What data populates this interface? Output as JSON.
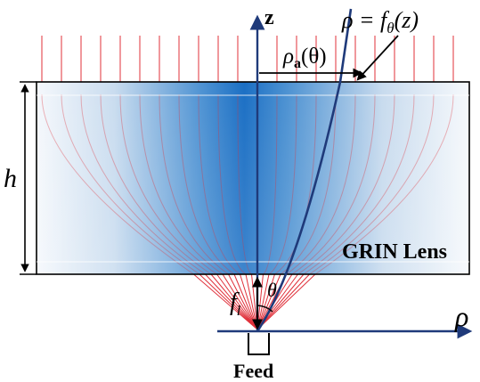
{
  "figure": {
    "labels": {
      "z_axis": "z",
      "rho_axis": "ρ",
      "lens_name": "GRIN Lens",
      "height": "h",
      "feed": "Feed",
      "theta": "θ",
      "focal_symbol": "f",
      "focal_subscript": "l",
      "rho_a_symbol": "ρ",
      "rho_a_subscript": "a",
      "rho_a_arg": "(θ)",
      "curve_lhs": "ρ = f",
      "curve_subscript": "θ",
      "curve_arg": "(z)"
    },
    "colors": {
      "lens_center": "#1a6fc4",
      "lens_edge": "#f2f6fb",
      "axis": "#1f3a7a",
      "ray": "#e0303a",
      "outline": "#000000"
    },
    "ray_count": 23
  }
}
